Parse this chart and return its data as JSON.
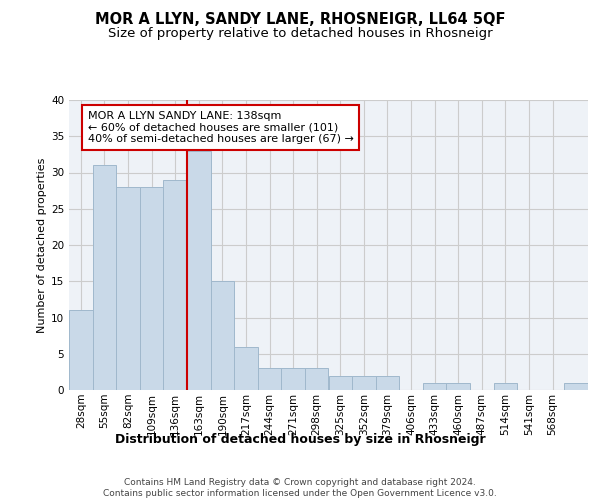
{
  "title": "MOR A LLYN, SANDY LANE, RHOSNEIGR, LL64 5QF",
  "subtitle": "Size of property relative to detached houses in Rhosneigr",
  "xlabel": "Distribution of detached houses by size in Rhosneigr",
  "ylabel": "Number of detached properties",
  "bar_values": [
    11,
    31,
    28,
    28,
    29,
    33,
    15,
    6,
    3,
    3,
    3,
    2,
    2,
    2,
    0,
    1,
    1,
    0,
    1,
    0,
    0,
    1
  ],
  "bar_labels": [
    "28sqm",
    "55sqm",
    "82sqm",
    "109sqm",
    "136sqm",
    "163sqm",
    "190sqm",
    "217sqm",
    "244sqm",
    "271sqm",
    "298sqm",
    "325sqm",
    "352sqm",
    "379sqm",
    "406sqm",
    "433sqm",
    "460sqm",
    "487sqm",
    "514sqm",
    "541sqm",
    "568sqm"
  ],
  "bar_color": "#c9d9e8",
  "bar_edge_color": "#a0b8cc",
  "vline_x": 4.5,
  "vline_color": "#cc0000",
  "annotation_text": "MOR A LLYN SANDY LANE: 138sqm\n← 60% of detached houses are smaller (101)\n40% of semi-detached houses are larger (67) →",
  "annotation_box_color": "#ffffff",
  "annotation_box_edge": "#cc0000",
  "ylim": [
    0,
    40
  ],
  "yticks": [
    0,
    5,
    10,
    15,
    20,
    25,
    30,
    35,
    40
  ],
  "grid_color": "#cccccc",
  "background_color": "#eef2f7",
  "footer_text": "Contains HM Land Registry data © Crown copyright and database right 2024.\nContains public sector information licensed under the Open Government Licence v3.0.",
  "title_fontsize": 10.5,
  "subtitle_fontsize": 9.5,
  "xlabel_fontsize": 9,
  "ylabel_fontsize": 8,
  "tick_fontsize": 7.5,
  "annotation_fontsize": 8,
  "footer_fontsize": 6.5
}
